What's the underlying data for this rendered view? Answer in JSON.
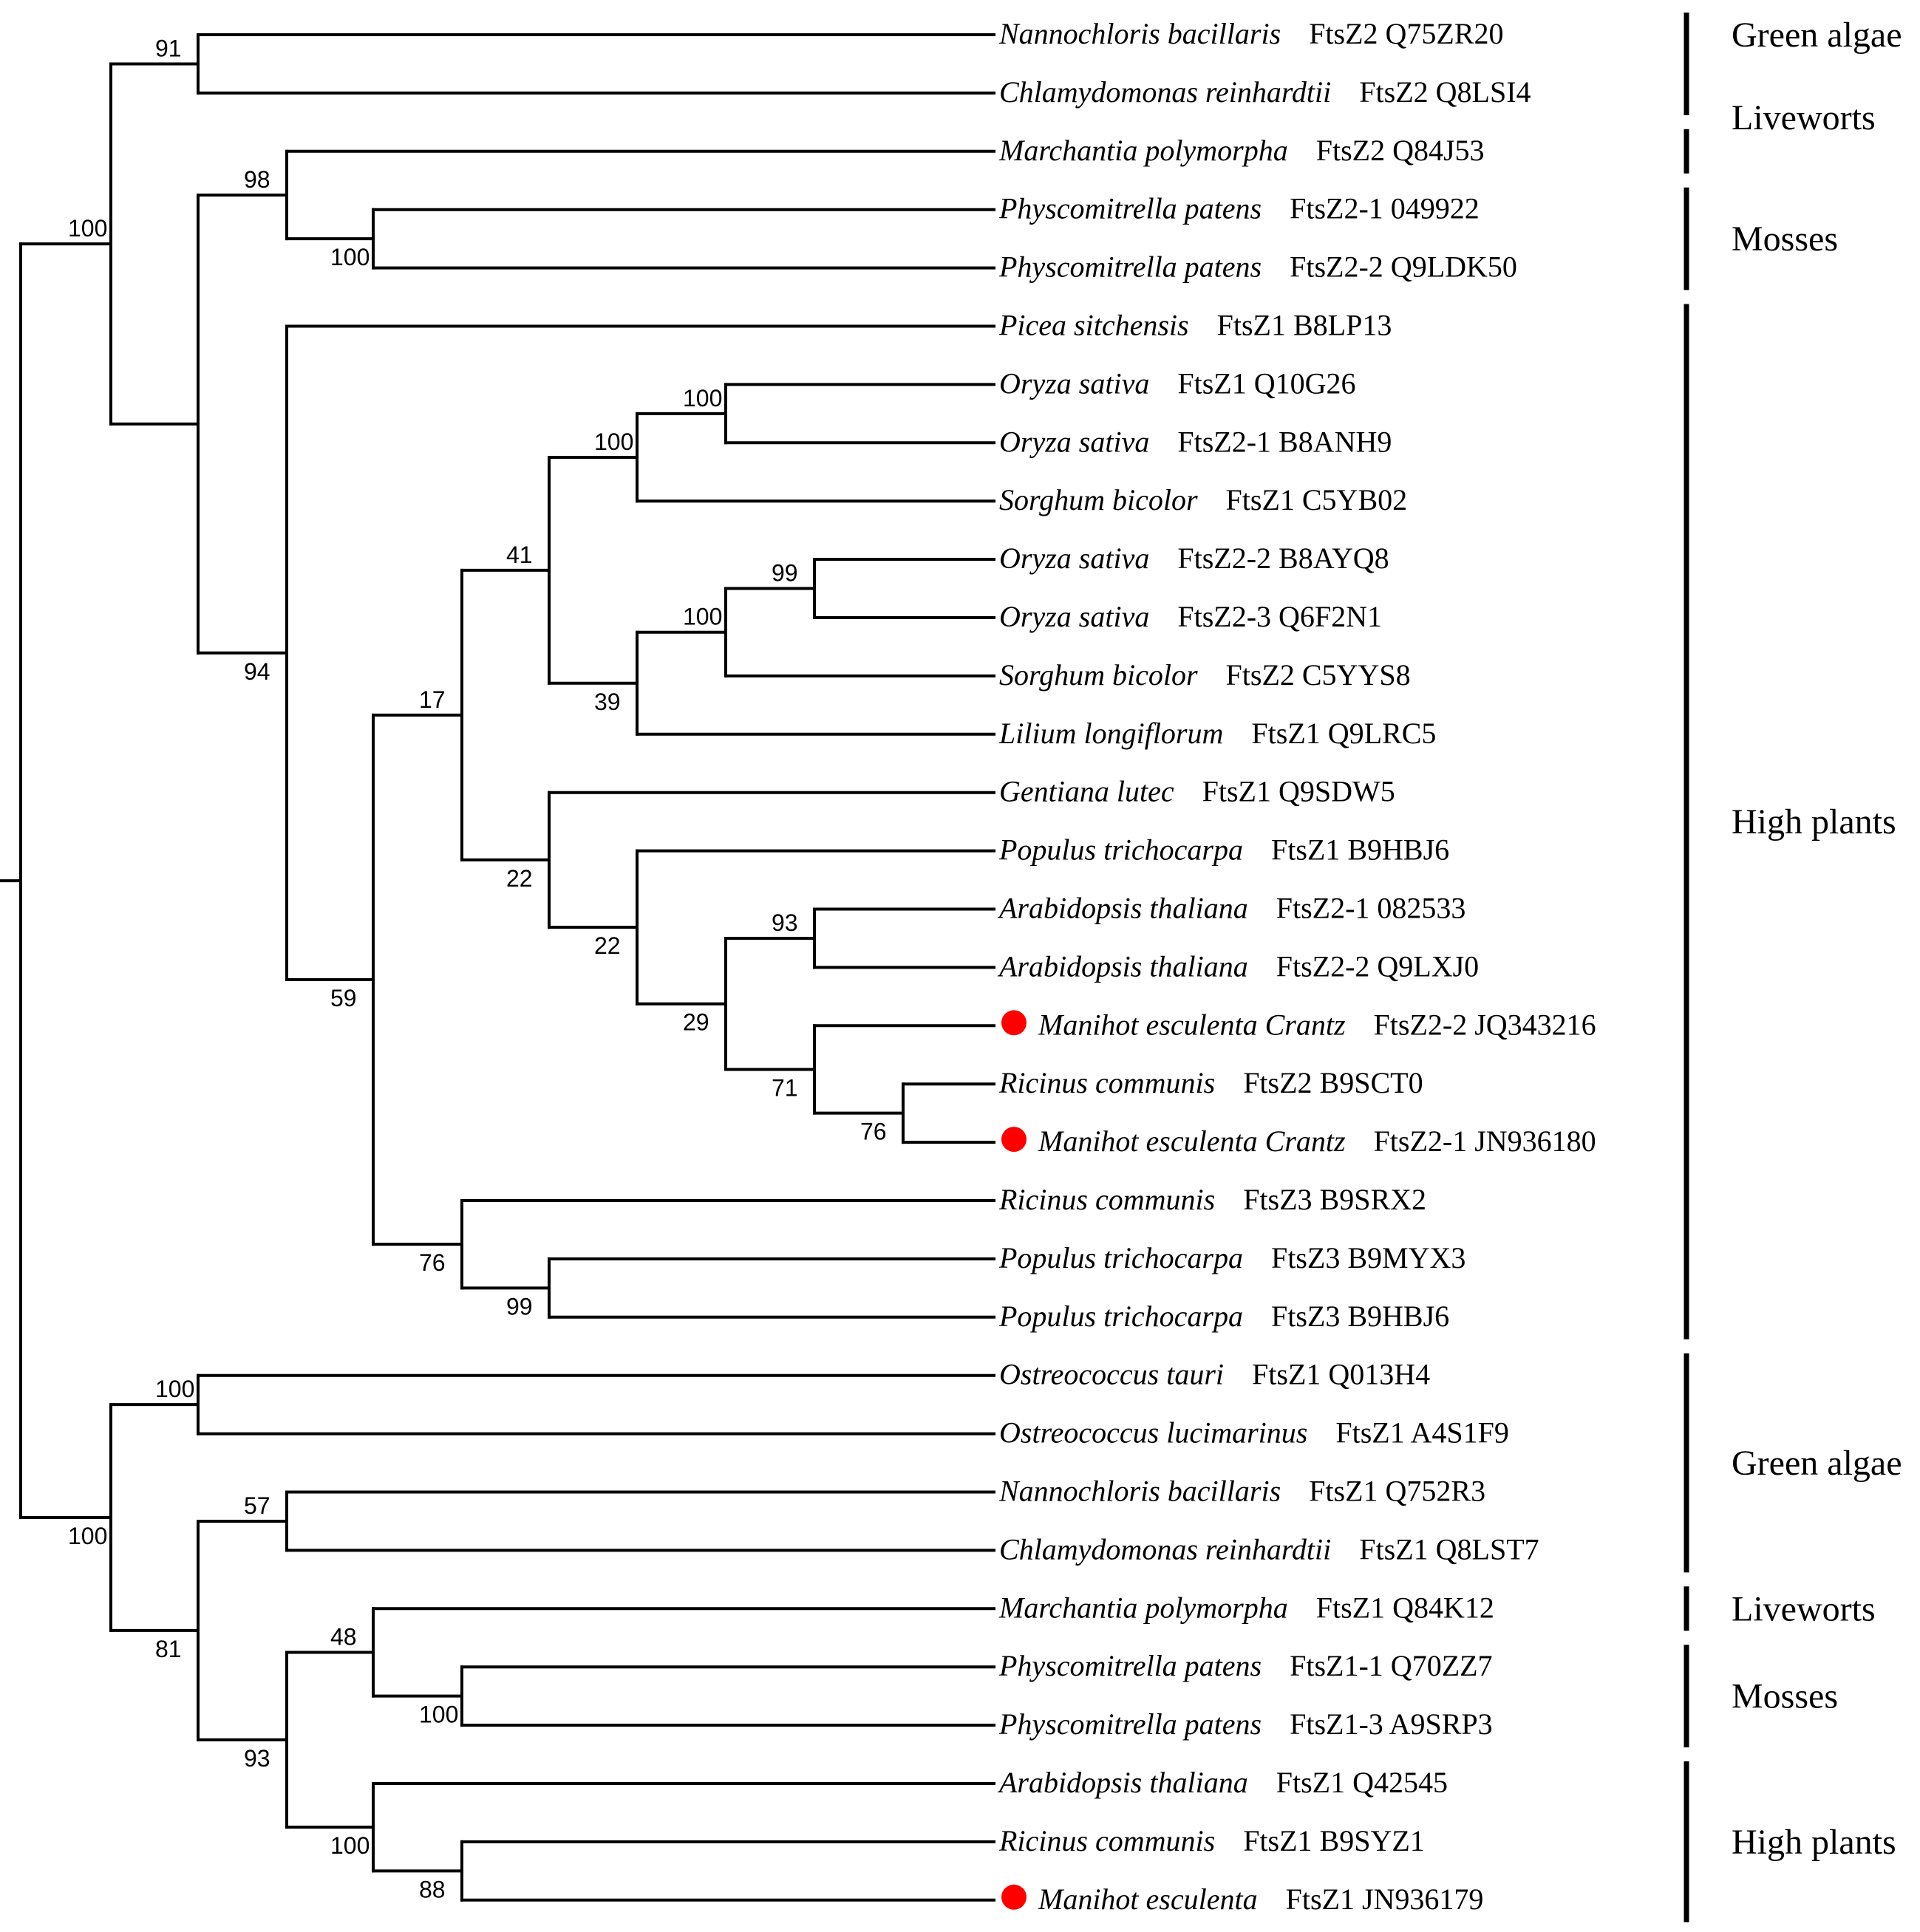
{
  "figure": {
    "type": "phylogenetic_tree",
    "marker_color": "#ff0000",
    "leaves": [
      {
        "id": "L1",
        "species": "Nannochloris  bacillaris",
        "protein": "FtsZ2 Q75ZR20",
        "marked": false
      },
      {
        "id": "L2",
        "species": "Chlamydomonas  reinhardtii",
        "protein": "FtsZ2 Q8LSI4",
        "marked": false
      },
      {
        "id": "L3",
        "species": "Marchantia  polymorpha",
        "protein": "FtsZ2 Q84J53",
        "marked": false
      },
      {
        "id": "L4",
        "species": "Physcomitrella  patens",
        "protein": "FtsZ2-1 049922",
        "marked": false
      },
      {
        "id": "L5",
        "species": "Physcomitrella  patens",
        "protein": "FtsZ2-2 Q9LDK50",
        "marked": false
      },
      {
        "id": "L6",
        "species": "Picea  sitchensis",
        "protein": "FtsZ1 B8LP13",
        "marked": false
      },
      {
        "id": "L7",
        "species": "Oryza  sativa",
        "protein": "FtsZ1 Q10G26",
        "marked": false
      },
      {
        "id": "L8",
        "species": "Oryza  sativa",
        "protein": "FtsZ2-1 B8ANH9",
        "marked": false
      },
      {
        "id": "L9",
        "species": "Sorghum  bicolor",
        "protein": "FtsZ1 C5YB02",
        "marked": false
      },
      {
        "id": "L10",
        "species": "Oryza  sativa",
        "protein": "FtsZ2-2 B8AYQ8",
        "marked": false
      },
      {
        "id": "L11",
        "species": "Oryza  sativa",
        "protein": "FtsZ2-3 Q6F2N1",
        "marked": false
      },
      {
        "id": "L12",
        "species": "Sorghum  bicolor",
        "protein": "FtsZ2 C5YYS8",
        "marked": false
      },
      {
        "id": "L13",
        "species": "Lilium  longiflorum",
        "protein": "FtsZ1 Q9LRC5",
        "marked": false
      },
      {
        "id": "L14",
        "species": "Gentiana  lutec",
        "protein": "FtsZ1 Q9SDW5",
        "marked": false
      },
      {
        "id": "L15",
        "species": "Populus  trichocarpa",
        "protein": "FtsZ1 B9HBJ6",
        "marked": false
      },
      {
        "id": "L16",
        "species": "Arabidopsis    thaliana",
        "protein": "FtsZ2-1 082533",
        "marked": false
      },
      {
        "id": "L17",
        "species": "Arabidopsis    thaliana",
        "protein": "FtsZ2-2 Q9LXJ0",
        "marked": false
      },
      {
        "id": "L18",
        "species": "Manihot  esculenta  Crantz",
        "protein": "FtsZ2-2 JQ343216",
        "marked": true
      },
      {
        "id": "L19",
        "species": "Ricinus  communis",
        "protein": "FtsZ2 B9SCT0",
        "marked": false
      },
      {
        "id": "L20",
        "species": "Manihot  esculenta  Crantz",
        "protein": "FtsZ2-1 JN936180",
        "marked": true
      },
      {
        "id": "L21",
        "species": "Ricinus  communis",
        "protein": "FtsZ3 B9SRX2",
        "marked": false
      },
      {
        "id": "L22",
        "species": "Populus  trichocarpa",
        "protein": "FtsZ3 B9MYX3",
        "marked": false
      },
      {
        "id": "L23",
        "species": "Populus  trichocarpa",
        "protein": "FtsZ3 B9HBJ6",
        "marked": false
      },
      {
        "id": "L24",
        "species": "Ostreococcus  tauri",
        "protein": "FtsZ1 Q013H4",
        "marked": false
      },
      {
        "id": "L25",
        "species": "Ostreococcus  lucimarinus",
        "protein": "FtsZ1 A4S1F9",
        "marked": false
      },
      {
        "id": "L26",
        "species": "Nannochloris  bacillaris",
        "protein": "FtsZ1 Q752R3",
        "marked": false
      },
      {
        "id": "L27",
        "species": "Chlamydomonas  reinhardtii",
        "protein": "FtsZ1 Q8LST7",
        "marked": false
      },
      {
        "id": "L28",
        "species": "Marchantia  polymorpha",
        "protein": "FtsZ1 Q84K12",
        "marked": false
      },
      {
        "id": "L29",
        "species": "Physcomitrella  patens",
        "protein": "FtsZ1-1 Q70ZZ7",
        "marked": false
      },
      {
        "id": "L30",
        "species": "Physcomitrella  patens",
        "protein": "FtsZ1-3 A9SRP3",
        "marked": false
      },
      {
        "id": "L31",
        "species": "Arabidopsis  thaliana",
        "protein": "FtsZ1 Q42545",
        "marked": false
      },
      {
        "id": "L32",
        "species": "Ricinus  communis",
        "protein": "FtsZ1 B9SYZ1",
        "marked": false
      },
      {
        "id": "L33",
        "species": "Manihot  esculenta",
        "protein": "FtsZ1 JN936179",
        "marked": true
      }
    ],
    "nodes": [
      {
        "id": "N_root",
        "children": [
          "N_A",
          "N_B"
        ],
        "support": null
      },
      {
        "id": "N_A",
        "children": [
          "N_grn1",
          "N_land"
        ],
        "support": "100"
      },
      {
        "id": "N_grn1",
        "children": [
          "L1",
          "L2"
        ],
        "support": "91"
      },
      {
        "id": "N_land",
        "children": [
          "N_bryo",
          "N_hp"
        ],
        "support": null
      },
      {
        "id": "N_bryo",
        "children": [
          "L3",
          "N_phys"
        ],
        "support": "98"
      },
      {
        "id": "N_phys",
        "children": [
          "L4",
          "L5"
        ],
        "support": "100"
      },
      {
        "id": "N_hp",
        "children": [
          "L6",
          "N_ang"
        ],
        "support": "94"
      },
      {
        "id": "N_ang",
        "children": [
          "N_17",
          "N_ftsz3"
        ],
        "support": "59"
      },
      {
        "id": "N_17",
        "children": [
          "N_mono",
          "N_dicot"
        ],
        "support": "17"
      },
      {
        "id": "N_mono",
        "children": [
          "N_monoA",
          "N_monoB"
        ],
        "support": "41"
      },
      {
        "id": "N_monoA",
        "children": [
          "N_osa1",
          "L9"
        ],
        "support": "100"
      },
      {
        "id": "N_osa1",
        "children": [
          "L7",
          "L8"
        ],
        "support": "100"
      },
      {
        "id": "N_monoB",
        "children": [
          "N_monoB2",
          "L13"
        ],
        "support": "39"
      },
      {
        "id": "N_monoB2",
        "children": [
          "N_osa2",
          "L12"
        ],
        "support": "100"
      },
      {
        "id": "N_osa2",
        "children": [
          "L10",
          "L11"
        ],
        "support": "99"
      },
      {
        "id": "N_dicot",
        "children": [
          "L14",
          "N_dicot2"
        ],
        "support": "22"
      },
      {
        "id": "N_dicot2",
        "children": [
          "L15",
          "N_dicot3"
        ],
        "support": "22"
      },
      {
        "id": "N_dicot3",
        "children": [
          "N_ath",
          "N_euph"
        ],
        "support": "29"
      },
      {
        "id": "N_ath",
        "children": [
          "L16",
          "L17"
        ],
        "support": "93"
      },
      {
        "id": "N_euph",
        "children": [
          "L18",
          "N_euph2"
        ],
        "support": "71"
      },
      {
        "id": "N_euph2",
        "children": [
          "L19",
          "L20"
        ],
        "support": "76"
      },
      {
        "id": "N_ftsz3",
        "children": [
          "L21",
          "N_pop3"
        ],
        "support": "76"
      },
      {
        "id": "N_pop3",
        "children": [
          "L22",
          "L23"
        ],
        "support": "99"
      },
      {
        "id": "N_B",
        "children": [
          "N_ostreo",
          "N_B2"
        ],
        "support": "100"
      },
      {
        "id": "N_ostreo",
        "children": [
          "L24",
          "L25"
        ],
        "support": "100"
      },
      {
        "id": "N_B2",
        "children": [
          "N_grn2",
          "N_B3"
        ],
        "support": "81"
      },
      {
        "id": "N_grn2",
        "children": [
          "L26",
          "L27"
        ],
        "support": "57"
      },
      {
        "id": "N_B3",
        "children": [
          "N_bryo2",
          "N_hp2"
        ],
        "support": "93"
      },
      {
        "id": "N_bryo2",
        "children": [
          "L28",
          "N_phys2"
        ],
        "support": "48"
      },
      {
        "id": "N_phys2",
        "children": [
          "L29",
          "L30"
        ],
        "support": "100"
      },
      {
        "id": "N_hp2",
        "children": [
          "L31",
          "N_hp2b"
        ],
        "support": "100"
      },
      {
        "id": "N_hp2b",
        "children": [
          "L32",
          "L33"
        ],
        "support": "88"
      }
    ],
    "groups": [
      {
        "label": "Green algae",
        "from": "L1",
        "to": "L2"
      },
      {
        "label": "Liveworts",
        "from": "L3",
        "to": "L3"
      },
      {
        "label": "Mosses",
        "from": "L4",
        "to": "L5"
      },
      {
        "label": "High plants",
        "from": "L6",
        "to": "L23"
      },
      {
        "label": "Green algae",
        "from": "L24",
        "to": "L27"
      },
      {
        "label": "Liveworts",
        "from": "L28",
        "to": "L28"
      },
      {
        "label": "Mosses",
        "from": "L29",
        "to": "L30"
      },
      {
        "label": "High plants",
        "from": "L31",
        "to": "L33"
      }
    ]
  }
}
